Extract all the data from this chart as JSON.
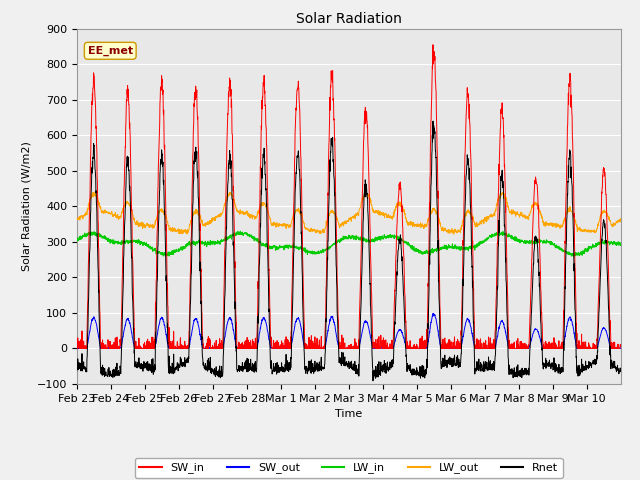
{
  "title": "Solar Radiation",
  "xlabel": "Time",
  "ylabel": "Solar Radiation (W/m2)",
  "ylim": [
    -100,
    900
  ],
  "annotation": "EE_met",
  "bg_color": "#f0f0f0",
  "plot_bg_color": "#e8e8e8",
  "grid_color": "#ffffff",
  "line_colors": {
    "SW_in": "#ff0000",
    "SW_out": "#0000ff",
    "LW_in": "#00cc00",
    "LW_out": "#ffa500",
    "Rnet": "#000000"
  },
  "x_ticks": [
    "Feb 23",
    "Feb 24",
    "Feb 25",
    "Feb 26",
    "Feb 27",
    "Feb 28",
    "Mar 1",
    "Mar 2",
    "Mar 3",
    "Mar 4",
    "Mar 5",
    "Mar 6",
    "Mar 7",
    "Mar 8",
    "Mar 9",
    "Mar 10"
  ],
  "n_days": 16,
  "n_points_per_day": 144,
  "sw_in_peaks": [
    760,
    720,
    750,
    730,
    750,
    750,
    750,
    770,
    680,
    460,
    840,
    720,
    670,
    480,
    760,
    500
  ],
  "lw_in_base": 295,
  "lw_out_base": 355
}
